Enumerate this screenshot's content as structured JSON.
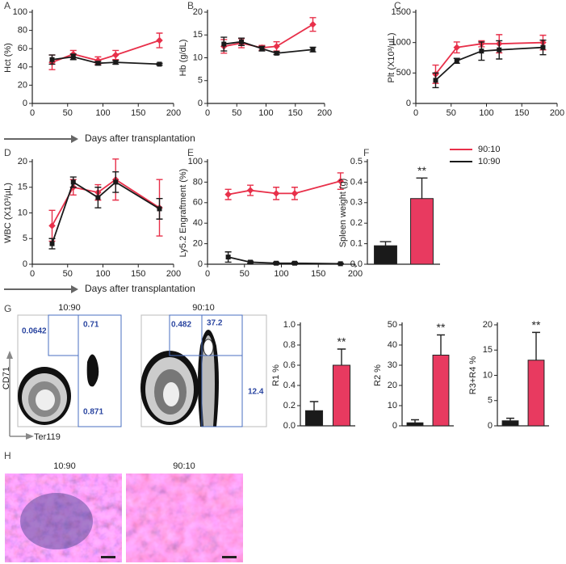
{
  "chart_data": [
    {
      "type": "line",
      "panel": "A",
      "y_label": "Hct (%)",
      "x": [
        28,
        58,
        93,
        118,
        180
      ],
      "xlim": [
        0,
        200
      ],
      "xticks": [
        0,
        50,
        100,
        150,
        200
      ],
      "ylim": [
        0,
        100
      ],
      "yticks": [
        0,
        20,
        40,
        60,
        80,
        100
      ],
      "series": [
        {
          "color": "#e8304a",
          "values": [
            45,
            54,
            47,
            53,
            69
          ],
          "errors": [
            8,
            4,
            4,
            5,
            8
          ]
        },
        {
          "color": "#1a1a1a",
          "values": [
            48,
            51,
            44,
            45,
            43
          ],
          "errors": [
            5,
            3,
            2,
            2,
            1
          ]
        }
      ]
    },
    {
      "type": "line",
      "panel": "B",
      "y_label": "Hb (g/dL)",
      "x": [
        28,
        58,
        93,
        118,
        180
      ],
      "xlim": [
        0,
        200
      ],
      "xticks": [
        0,
        50,
        100,
        150,
        200
      ],
      "ylim": [
        0,
        20
      ],
      "yticks": [
        0,
        5,
        10,
        15,
        20
      ],
      "series": [
        {
          "color": "#e8304a",
          "values": [
            12.5,
            13.2,
            12.2,
            12.5,
            17.3
          ],
          "errors": [
            1.5,
            1,
            0.5,
            1,
            1.5
          ]
        },
        {
          "color": "#1a1a1a",
          "values": [
            13,
            13.5,
            12,
            11,
            11.8
          ],
          "errors": [
            1.5,
            0.8,
            0.5,
            0.3,
            0.5
          ]
        }
      ]
    },
    {
      "type": "line",
      "panel": "C",
      "y_label": "Plt (X10³/µL)",
      "x": [
        28,
        58,
        93,
        118,
        180
      ],
      "xlim": [
        0,
        200
      ],
      "xticks": [
        0,
        50,
        100,
        150,
        200
      ],
      "ylim": [
        0,
        1500
      ],
      "yticks": [
        0,
        500,
        1000,
        1500
      ],
      "series": [
        {
          "color": "#e8304a",
          "values": [
            480,
            920,
            980,
            980,
            1000
          ],
          "errors": [
            150,
            90,
            50,
            150,
            120
          ]
        },
        {
          "color": "#1a1a1a",
          "values": [
            380,
            700,
            860,
            880,
            920
          ],
          "errors": [
            120,
            40,
            150,
            150,
            120
          ]
        }
      ]
    },
    {
      "type": "line",
      "panel": "D",
      "y_label": "WBC (X10³/µL)",
      "x": [
        28,
        58,
        93,
        118,
        180
      ],
      "xlim": [
        0,
        200
      ],
      "xticks": [
        0,
        50,
        100,
        150,
        200
      ],
      "ylim": [
        0,
        20
      ],
      "yticks": [
        0,
        5,
        10,
        15,
        20
      ],
      "series": [
        {
          "color": "#e8304a",
          "values": [
            7.5,
            15,
            14,
            16.5,
            11
          ],
          "errors": [
            3,
            1.5,
            1.5,
            4,
            5.5
          ]
        },
        {
          "color": "#1a1a1a",
          "values": [
            4,
            16,
            13,
            16,
            10.8
          ],
          "errors": [
            1,
            1,
            2,
            2,
            2
          ]
        }
      ]
    },
    {
      "type": "line",
      "panel": "E",
      "y_label": "Ly5.2 Engraftment (%)",
      "x": [
        28,
        58,
        93,
        118,
        180
      ],
      "xlim": [
        0,
        200
      ],
      "xticks": [
        0,
        50,
        100,
        150,
        200
      ],
      "ylim": [
        0,
        100
      ],
      "yticks": [
        0,
        20,
        40,
        60,
        80,
        100
      ],
      "legend": "right",
      "series": [
        {
          "name": "90:10",
          "color": "#e8304a",
          "values": [
            68,
            72,
            69,
            69,
            81
          ],
          "errors": [
            5,
            5,
            6,
            6,
            8
          ]
        },
        {
          "name": "10:90",
          "color": "#1a1a1a",
          "values": [
            7,
            2,
            1,
            1,
            0.5
          ],
          "errors": [
            5,
            1,
            1,
            1,
            0.5
          ]
        }
      ]
    },
    {
      "type": "bar",
      "panel": "F",
      "y_label": "Spleen weight (g)",
      "categories": [
        null,
        null
      ],
      "values": [
        0.09,
        0.32
      ],
      "errors": [
        0.02,
        0.1
      ],
      "colors": [
        "#1a1a1a",
        "#e83a60"
      ],
      "annotation": "**",
      "ylim": [
        0,
        0.5
      ],
      "yticks": [
        {
          "value": 0,
          "label": "0.0"
        },
        0.1,
        0.2,
        0.3,
        0.4,
        0.5
      ]
    },
    {
      "type": "bar",
      "y_label": "R1 %",
      "categories": [
        null,
        null
      ],
      "values": [
        0.15,
        0.6
      ],
      "errors": [
        0.09,
        0.16
      ],
      "colors": [
        "#1a1a1a",
        "#e83a60"
      ],
      "annotation": "**",
      "ylim": [
        0,
        1
      ],
      "yticks": [
        {
          "value": 0,
          "label": "0.0"
        },
        0.2,
        0.4,
        0.6,
        0.8,
        {
          "value": 1,
          "label": "1.0"
        }
      ]
    },
    {
      "type": "bar",
      "y_label": "R2 %",
      "categories": [
        null,
        null
      ],
      "values": [
        1.5,
        35
      ],
      "errors": [
        1.5,
        10
      ],
      "colors": [
        "#1a1a1a",
        "#e83a60"
      ],
      "annotation": "**",
      "ylim": [
        0,
        50
      ],
      "yticks": [
        0,
        10,
        20,
        30,
        40,
        50
      ]
    },
    {
      "type": "bar",
      "y_label": "R3+R4 %",
      "categories": [
        null,
        null
      ],
      "values": [
        1,
        13
      ],
      "errors": [
        0.5,
        5.5
      ],
      "colors": [
        "#1a1a1a",
        "#e83a60"
      ],
      "annotation": "**",
      "ylim": [
        0,
        20
      ],
      "yticks": [
        0,
        5,
        10,
        15,
        20
      ]
    }
  ],
  "time_axis_labels": [
    "Days after transplantation",
    "Days after transplantation"
  ],
  "flow": {
    "panel": "G",
    "y_label": "CD71",
    "x_label": "Ter119",
    "plots": [
      {
        "title": "10:90",
        "gates": [
          "0.0642",
          "0.71",
          "0.871"
        ]
      },
      {
        "title": "90:10",
        "gates": [
          "0.482",
          "37.2",
          "12.4"
        ]
      }
    ]
  },
  "histology": {
    "panel": "H",
    "images": [
      "10:90",
      "90:10"
    ]
  }
}
